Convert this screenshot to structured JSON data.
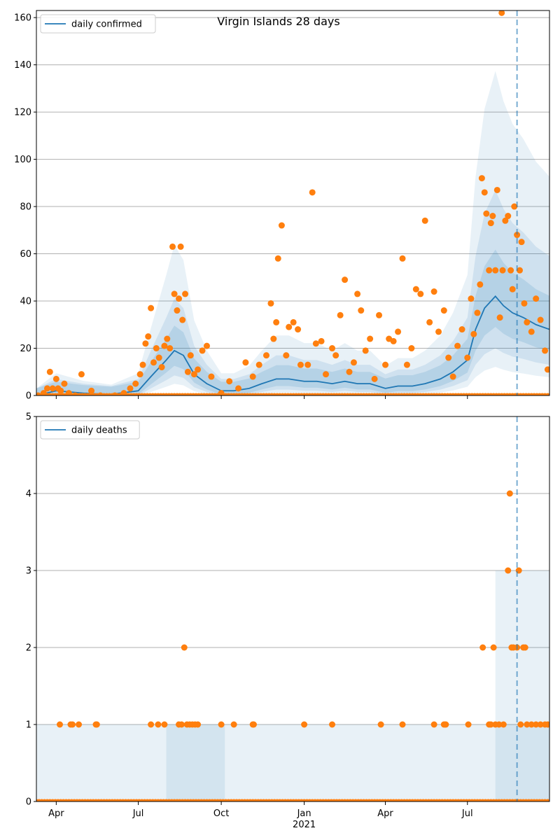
{
  "colors": {
    "line": "#1f77b4",
    "points": "#ff7f0e",
    "band": "#1f77b4",
    "grid": "#b0b0b0",
    "axes": "#000000"
  },
  "x_axis": {
    "start": "2020-03-10",
    "end": "2021-09-30",
    "ticks": [
      {
        "date": "2020-04-01",
        "label": "Apr",
        "sublabel": ""
      },
      {
        "date": "2020-07-01",
        "label": "Jul",
        "sublabel": ""
      },
      {
        "date": "2020-10-01",
        "label": "Oct",
        "sublabel": ""
      },
      {
        "date": "2021-01-01",
        "label": "Jan",
        "sublabel": "2021"
      },
      {
        "date": "2021-04-01",
        "label": "Apr",
        "sublabel": ""
      },
      {
        "date": "2021-07-01",
        "label": "Jul",
        "sublabel": ""
      }
    ]
  },
  "chart_data": [
    {
      "type": "line",
      "title": "Virgin Islands 28 days",
      "legend": {
        "label": "daily confirmed",
        "position": "top-left"
      },
      "ylim": [
        0,
        163
      ],
      "yticks": [
        0,
        20,
        40,
        60,
        80,
        100,
        120,
        140,
        160
      ],
      "grid": "horizontal",
      "vline_date": "2021-08-25",
      "series": [
        {
          "name": "daily confirmed",
          "kind": "line",
          "points": [
            [
              "2020-03-10",
              0
            ],
            [
              "2020-04-01",
              2
            ],
            [
              "2020-05-01",
              1
            ],
            [
              "2020-06-01",
              0.5
            ],
            [
              "2020-07-01",
              2
            ],
            [
              "2020-07-15",
              8
            ],
            [
              "2020-08-01",
              15
            ],
            [
              "2020-08-10",
              19
            ],
            [
              "2020-08-20",
              17
            ],
            [
              "2020-09-01",
              9
            ],
            [
              "2020-09-15",
              5
            ],
            [
              "2020-10-01",
              2
            ],
            [
              "2020-10-15",
              2
            ],
            [
              "2020-11-01",
              3
            ],
            [
              "2020-11-15",
              5
            ],
            [
              "2020-12-01",
              7
            ],
            [
              "2020-12-15",
              7
            ],
            [
              "2021-01-01",
              6
            ],
            [
              "2021-01-15",
              6
            ],
            [
              "2021-02-01",
              5
            ],
            [
              "2021-02-15",
              6
            ],
            [
              "2021-03-01",
              5
            ],
            [
              "2021-03-15",
              5
            ],
            [
              "2021-04-01",
              3
            ],
            [
              "2021-04-15",
              4
            ],
            [
              "2021-05-01",
              4
            ],
            [
              "2021-05-15",
              5
            ],
            [
              "2021-06-01",
              7
            ],
            [
              "2021-06-15",
              10
            ],
            [
              "2021-07-01",
              15
            ],
            [
              "2021-07-10",
              28
            ],
            [
              "2021-07-20",
              37
            ],
            [
              "2021-08-01",
              42
            ],
            [
              "2021-08-10",
              38
            ],
            [
              "2021-08-20",
              35
            ],
            [
              "2021-09-01",
              33
            ],
            [
              "2021-09-15",
              30
            ],
            [
              "2021-09-30",
              28
            ]
          ]
        },
        {
          "name": "",
          "kind": "scatter",
          "points": [
            [
              "2020-03-12",
              0
            ],
            [
              "2020-03-18",
              1
            ],
            [
              "2020-03-22",
              3
            ],
            [
              "2020-03-25",
              10
            ],
            [
              "2020-03-28",
              3
            ],
            [
              "2020-04-01",
              7
            ],
            [
              "2020-04-03",
              3
            ],
            [
              "2020-04-06",
              2
            ],
            [
              "2020-04-10",
              5
            ],
            [
              "2020-04-15",
              1
            ],
            [
              "2020-04-22",
              0
            ],
            [
              "2020-04-29",
              9
            ],
            [
              "2020-05-10",
              2
            ],
            [
              "2020-05-20",
              0
            ],
            [
              "2020-06-05",
              0
            ],
            [
              "2020-06-15",
              1
            ],
            [
              "2020-06-22",
              3
            ],
            [
              "2020-06-28",
              5
            ],
            [
              "2020-07-03",
              9
            ],
            [
              "2020-07-06",
              13
            ],
            [
              "2020-07-09",
              22
            ],
            [
              "2020-07-12",
              25
            ],
            [
              "2020-07-15",
              37
            ],
            [
              "2020-07-18",
              14
            ],
            [
              "2020-07-21",
              20
            ],
            [
              "2020-07-24",
              16
            ],
            [
              "2020-07-27",
              12
            ],
            [
              "2020-07-30",
              21
            ],
            [
              "2020-08-02",
              24
            ],
            [
              "2020-08-05",
              20
            ],
            [
              "2020-08-08",
              63
            ],
            [
              "2020-08-10",
              43
            ],
            [
              "2020-08-13",
              36
            ],
            [
              "2020-08-15",
              41
            ],
            [
              "2020-08-17",
              63
            ],
            [
              "2020-08-19",
              32
            ],
            [
              "2020-08-22",
              43
            ],
            [
              "2020-08-25",
              10
            ],
            [
              "2020-08-28",
              17
            ],
            [
              "2020-09-01",
              9
            ],
            [
              "2020-09-05",
              11
            ],
            [
              "2020-09-10",
              19
            ],
            [
              "2020-09-15",
              21
            ],
            [
              "2020-09-20",
              8
            ],
            [
              "2020-10-01",
              1
            ],
            [
              "2020-10-10",
              6
            ],
            [
              "2020-10-20",
              3
            ],
            [
              "2020-10-28",
              14
            ],
            [
              "2020-11-05",
              8
            ],
            [
              "2020-11-12",
              13
            ],
            [
              "2020-11-20",
              17
            ],
            [
              "2020-11-25",
              39
            ],
            [
              "2020-11-28",
              24
            ],
            [
              "2020-12-01",
              31
            ],
            [
              "2020-12-03",
              58
            ],
            [
              "2020-12-07",
              72
            ],
            [
              "2020-12-12",
              17
            ],
            [
              "2020-12-15",
              29
            ],
            [
              "2020-12-20",
              31
            ],
            [
              "2020-12-25",
              28
            ],
            [
              "2020-12-28",
              13
            ],
            [
              "2021-01-05",
              13
            ],
            [
              "2021-01-10",
              86
            ],
            [
              "2021-01-14",
              22
            ],
            [
              "2021-01-20",
              23
            ],
            [
              "2021-01-25",
              9
            ],
            [
              "2021-02-01",
              20
            ],
            [
              "2021-02-05",
              17
            ],
            [
              "2021-02-10",
              34
            ],
            [
              "2021-02-15",
              49
            ],
            [
              "2021-02-20",
              10
            ],
            [
              "2021-02-25",
              14
            ],
            [
              "2021-03-01",
              43
            ],
            [
              "2021-03-05",
              36
            ],
            [
              "2021-03-10",
              19
            ],
            [
              "2021-03-15",
              24
            ],
            [
              "2021-03-20",
              7
            ],
            [
              "2021-03-25",
              34
            ],
            [
              "2021-04-01",
              13
            ],
            [
              "2021-04-05",
              24
            ],
            [
              "2021-04-10",
              23
            ],
            [
              "2021-04-15",
              27
            ],
            [
              "2021-04-20",
              58
            ],
            [
              "2021-04-25",
              13
            ],
            [
              "2021-04-30",
              20
            ],
            [
              "2021-05-05",
              45
            ],
            [
              "2021-05-10",
              43
            ],
            [
              "2021-05-15",
              74
            ],
            [
              "2021-05-20",
              31
            ],
            [
              "2021-05-25",
              44
            ],
            [
              "2021-05-30",
              27
            ],
            [
              "2021-06-05",
              36
            ],
            [
              "2021-06-10",
              16
            ],
            [
              "2021-06-15",
              8
            ],
            [
              "2021-06-20",
              21
            ],
            [
              "2021-06-25",
              28
            ],
            [
              "2021-07-01",
              16
            ],
            [
              "2021-07-05",
              41
            ],
            [
              "2021-07-08",
              26
            ],
            [
              "2021-07-12",
              35
            ],
            [
              "2021-07-15",
              47
            ],
            [
              "2021-07-17",
              92
            ],
            [
              "2021-07-20",
              86
            ],
            [
              "2021-07-22",
              77
            ],
            [
              "2021-07-25",
              53
            ],
            [
              "2021-07-27",
              73
            ],
            [
              "2021-07-29",
              76
            ],
            [
              "2021-08-01",
              53
            ],
            [
              "2021-08-03",
              87
            ],
            [
              "2021-08-06",
              33
            ],
            [
              "2021-08-09",
              53
            ],
            [
              "2021-08-12",
              74
            ],
            [
              "2021-08-15",
              76
            ],
            [
              "2021-08-18",
              53
            ],
            [
              "2021-08-20",
              45
            ],
            [
              "2021-08-22",
              80
            ],
            [
              "2021-08-25",
              68
            ],
            [
              "2021-08-28",
              53
            ],
            [
              "2021-08-30",
              65
            ],
            [
              "2021-09-02",
              39
            ],
            [
              "2021-09-05",
              31
            ],
            [
              "2021-09-10",
              27
            ],
            [
              "2021-09-15",
              41
            ],
            [
              "2021-09-20",
              32
            ],
            [
              "2021-09-25",
              19
            ],
            [
              "2021-09-28",
              11
            ],
            [
              "2021-08-08",
              162
            ]
          ]
        }
      ]
    },
    {
      "type": "line",
      "title": "",
      "legend": {
        "label": "daily deaths",
        "position": "top-left"
      },
      "ylim": [
        0,
        5
      ],
      "yticks": [
        0,
        1,
        2,
        3,
        4,
        5
      ],
      "grid": "horizontal",
      "vline_date": "2021-08-25",
      "series": [
        {
          "name": "daily deaths",
          "kind": "line",
          "points": [
            [
              "2020-03-10",
              0
            ],
            [
              "2021-09-30",
              0
            ]
          ]
        },
        {
          "name": "",
          "kind": "scatter",
          "points": [
            [
              "2020-04-05",
              1
            ],
            [
              "2020-04-17",
              1
            ],
            [
              "2020-04-19",
              1
            ],
            [
              "2020-04-26",
              1
            ],
            [
              "2020-05-15",
              1
            ],
            [
              "2020-05-16",
              1
            ],
            [
              "2020-07-15",
              1
            ],
            [
              "2020-07-23",
              1
            ],
            [
              "2020-07-30",
              1
            ],
            [
              "2020-08-15",
              1
            ],
            [
              "2020-08-18",
              1
            ],
            [
              "2020-08-21",
              2
            ],
            [
              "2020-08-24",
              1
            ],
            [
              "2020-08-27",
              1
            ],
            [
              "2020-08-30",
              1
            ],
            [
              "2020-09-02",
              1
            ],
            [
              "2020-09-05",
              1
            ],
            [
              "2020-10-01",
              1
            ],
            [
              "2020-10-15",
              1
            ],
            [
              "2020-11-05",
              1
            ],
            [
              "2020-11-06",
              1
            ],
            [
              "2021-01-01",
              1
            ],
            [
              "2021-02-01",
              1
            ],
            [
              "2021-03-27",
              1
            ],
            [
              "2021-04-20",
              1
            ],
            [
              "2021-05-25",
              1
            ],
            [
              "2021-06-05",
              1
            ],
            [
              "2021-06-07",
              1
            ],
            [
              "2021-07-02",
              1
            ],
            [
              "2021-07-18",
              2
            ],
            [
              "2021-07-25",
              1
            ],
            [
              "2021-07-27",
              1
            ],
            [
              "2021-07-30",
              2
            ],
            [
              "2021-08-01",
              1
            ],
            [
              "2021-08-05",
              1
            ],
            [
              "2021-08-10",
              1
            ],
            [
              "2021-08-15",
              3
            ],
            [
              "2021-08-17",
              4
            ],
            [
              "2021-08-19",
              2
            ],
            [
              "2021-08-21",
              2
            ],
            [
              "2021-08-25",
              2
            ],
            [
              "2021-08-27",
              3
            ],
            [
              "2021-08-29",
              1
            ],
            [
              "2021-09-01",
              2
            ],
            [
              "2021-09-03",
              2
            ],
            [
              "2021-09-05",
              1
            ],
            [
              "2021-09-10",
              1
            ],
            [
              "2021-09-15",
              1
            ],
            [
              "2021-09-20",
              1
            ],
            [
              "2021-09-25",
              1
            ],
            [
              "2021-09-28",
              1
            ]
          ]
        }
      ]
    }
  ]
}
